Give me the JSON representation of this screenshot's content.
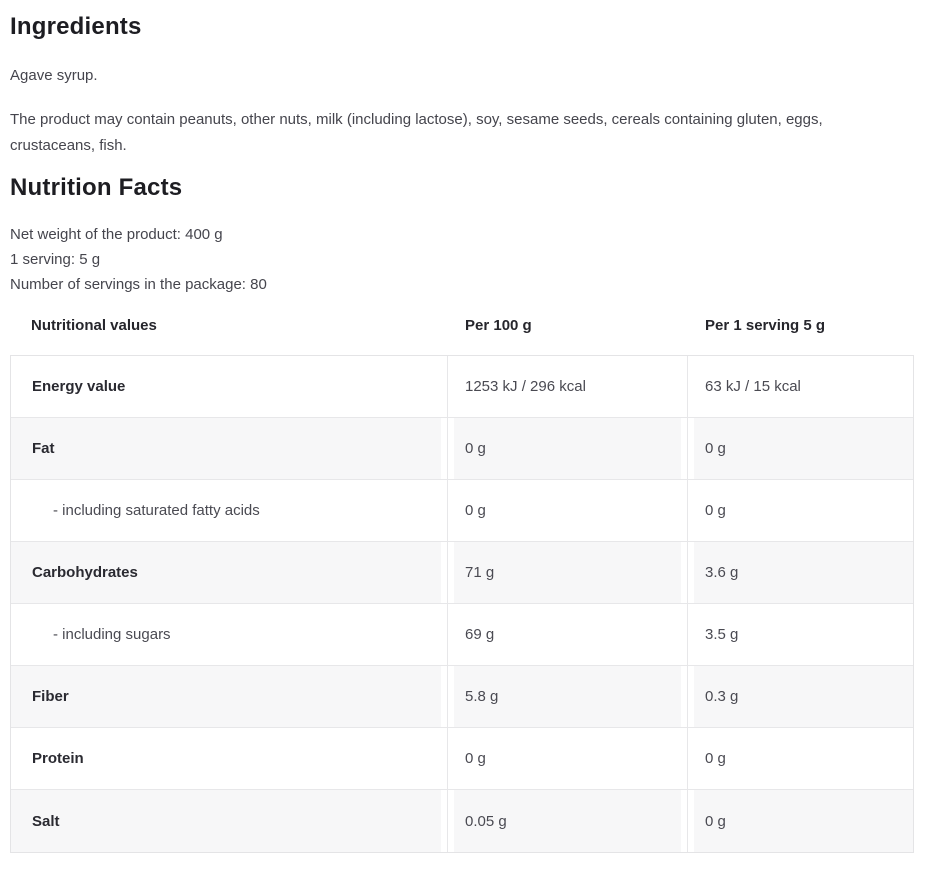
{
  "page": {
    "ingredients": {
      "title": "Ingredients",
      "description": "Agave syrup.",
      "allergen_info": "The product may contain peanuts, other nuts, milk (including lactose), soy, sesame seeds, cereals containing gluten, eggs, crustaceans, fish."
    },
    "nutrition": {
      "title": "Nutrition Facts",
      "net_weight": "Net weight of the product: 400 g",
      "serving_size": "1 serving: 5 g",
      "servings_in_package": "Number of servings in the package: 80",
      "table": {
        "headers": [
          "Nutritional values",
          "Per 100 g",
          "Per 1 serving 5 g"
        ],
        "rows": [
          {
            "label": "Energy value",
            "per_100g": "1253 kJ / 296 kcal",
            "per_serving": "63 kJ / 15 kcal"
          },
          {
            "label": "Fat",
            "per_100g": "0 g",
            "per_serving": "0 g"
          },
          {
            "label": "- including saturated fatty acids",
            "per_100g": "0 g",
            "per_serving": "0 g"
          },
          {
            "label": "Carbohydrates",
            "per_100g": "71 g",
            "per_serving": "3.6 g"
          },
          {
            "label": "- including sugars",
            "per_100g": "69 g",
            "per_serving": "3.5 g"
          },
          {
            "label": "Fiber",
            "per_100g": "5.8 g",
            "per_serving": "0.3 g"
          },
          {
            "label": "Protein",
            "per_100g": "0 g",
            "per_serving": "0 g"
          },
          {
            "label": "Salt",
            "per_100g": "0.05 g",
            "per_serving": "0 g"
          }
        ]
      }
    },
    "colors": {
      "heading": "#1d1d22",
      "body_text": "#45454d",
      "table_border": "#e7e7e9",
      "alt_row_bg": "#f7f7f8"
    }
  }
}
